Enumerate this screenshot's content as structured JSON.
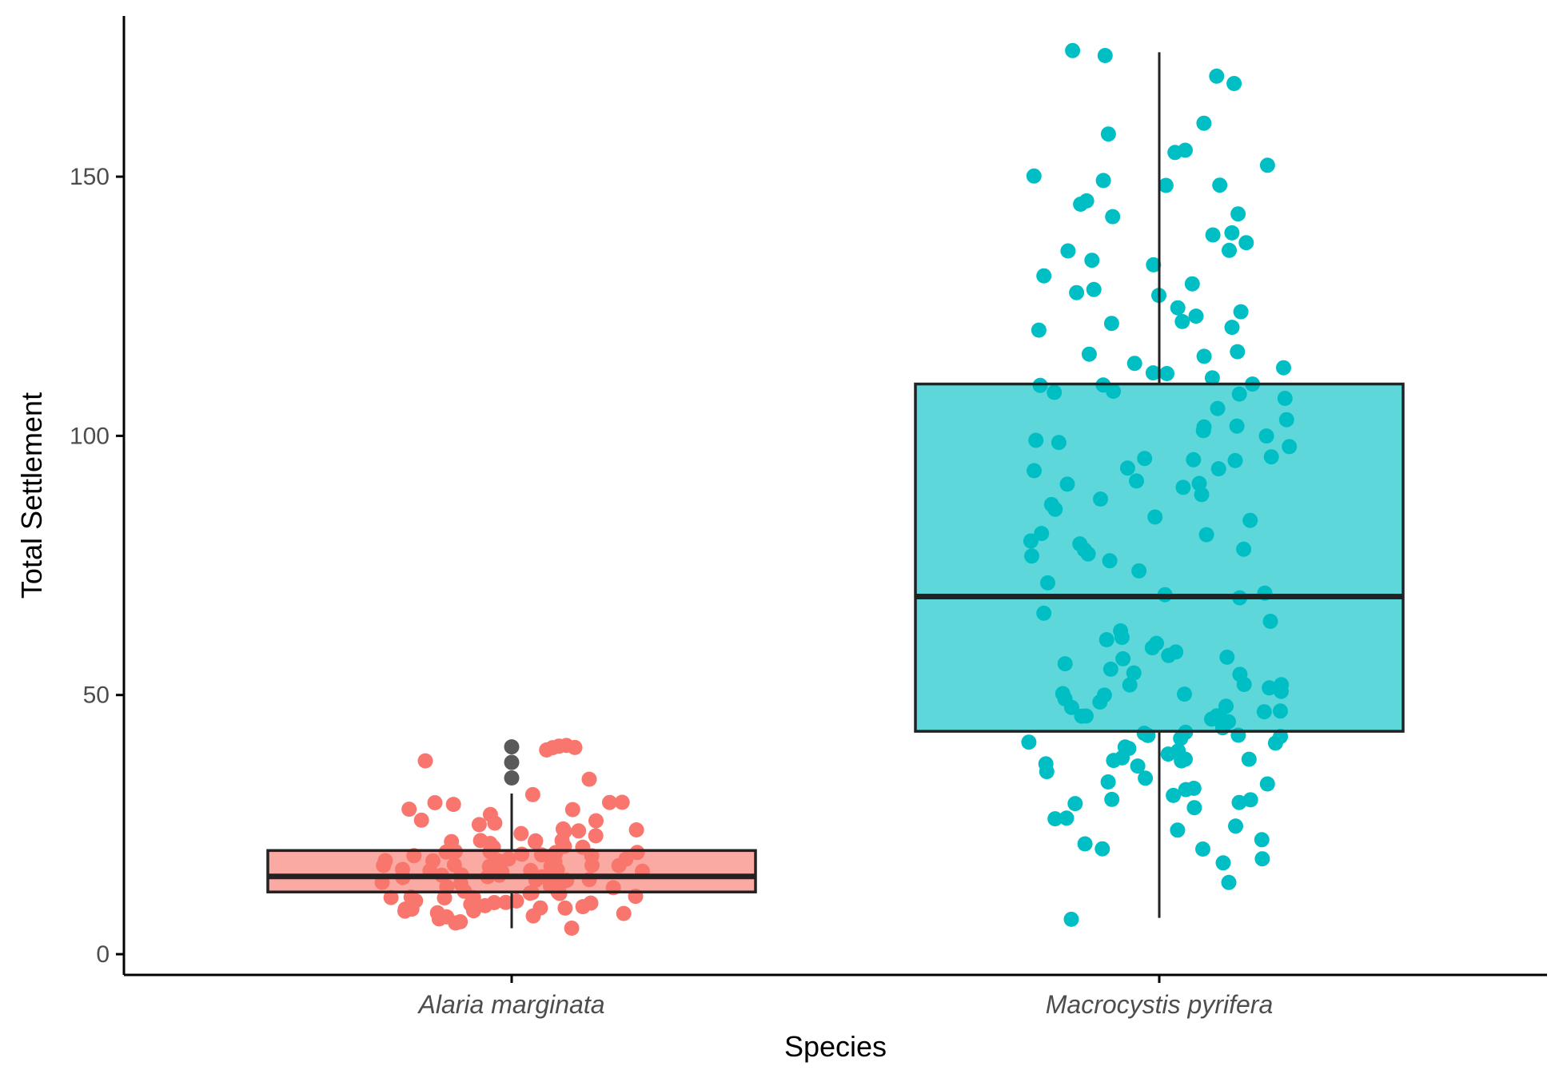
{
  "chart_data": {
    "type": "boxplot",
    "title": "",
    "xlabel": "Species",
    "ylabel": "Total Settlement",
    "ylim": [
      -4,
      181
    ],
    "yticks": [
      0,
      50,
      100,
      150
    ],
    "grid": false,
    "legend": "none",
    "categories": [
      "Alaria marginata",
      "Macrocystis pyrifera"
    ],
    "series": [
      {
        "category": "Alaria marginata",
        "point_color": "#f8766d",
        "box_fill": "#f8766d",
        "stats": {
          "whisker_low": 5,
          "q1": 12,
          "median": 15,
          "q3": 20,
          "whisker_high": 31
        },
        "outliers": [
          34,
          37,
          40
        ],
        "points": [
          40,
          39,
          40,
          37,
          40,
          40,
          34,
          31,
          29,
          29,
          28,
          28,
          29,
          29,
          27,
          26,
          26,
          25,
          24,
          24,
          25,
          23,
          23,
          24,
          22,
          22,
          21,
          22,
          21,
          21,
          20,
          20,
          20,
          20,
          19,
          19,
          19,
          18,
          18,
          18,
          18,
          18,
          17,
          17,
          17,
          17,
          17,
          16,
          16,
          16,
          16,
          16,
          15,
          15,
          15,
          15,
          15,
          14,
          14,
          14,
          14,
          14,
          13,
          13,
          13,
          13,
          12,
          12,
          12,
          12,
          11,
          11,
          11,
          11,
          10,
          10,
          10,
          10,
          10,
          9,
          9,
          9,
          9,
          9,
          8,
          8,
          8,
          8,
          7,
          7,
          7,
          6,
          6,
          5,
          24,
          22,
          21,
          19,
          16,
          14,
          12,
          10,
          22,
          18,
          15,
          13,
          11,
          9,
          20,
          17
        ]
      },
      {
        "category": "Macrocystis pyrifera",
        "point_color": "#00bfc4",
        "box_fill": "#00bfc4",
        "stats": {
          "whisker_low": 7,
          "q1": 43,
          "median": 69,
          "q3": 110,
          "whisker_high": 174
        },
        "outliers": [],
        "points": [
          174,
          173,
          169,
          168,
          160,
          158,
          155,
          155,
          152,
          150,
          149,
          148,
          148,
          145,
          145,
          143,
          142,
          139,
          139,
          137,
          136,
          136,
          134,
          133,
          131,
          129,
          128,
          128,
          127,
          125,
          124,
          123,
          122,
          122,
          121,
          120,
          116,
          116,
          115,
          114,
          113,
          112,
          112,
          111,
          110,
          110,
          110,
          109,
          108,
          108,
          107,
          105,
          103,
          102,
          102,
          101,
          100,
          99,
          99,
          98,
          96,
          96,
          95,
          95,
          94,
          94,
          93,
          91,
          91,
          91,
          90,
          89,
          88,
          87,
          86,
          84,
          84,
          81,
          81,
          80,
          79,
          78,
          78,
          77,
          77,
          76,
          74,
          72,
          70,
          69,
          69,
          66,
          64,
          62,
          61,
          61,
          60,
          59,
          58,
          58,
          57,
          57,
          56,
          55,
          54,
          54,
          52,
          52,
          52,
          51,
          51,
          50,
          50,
          50,
          49,
          49,
          48,
          48,
          47,
          47,
          46,
          46,
          46,
          45,
          45,
          45,
          44,
          43,
          43,
          42,
          42,
          42,
          42,
          41,
          41,
          40,
          40,
          39,
          39,
          38,
          38,
          38,
          37,
          37,
          37,
          36,
          35,
          34,
          33,
          33,
          32,
          32,
          31,
          30,
          30,
          29,
          29,
          28,
          26,
          26,
          25,
          24,
          22,
          21,
          20,
          20,
          18,
          18,
          14,
          7
        ]
      }
    ]
  }
}
